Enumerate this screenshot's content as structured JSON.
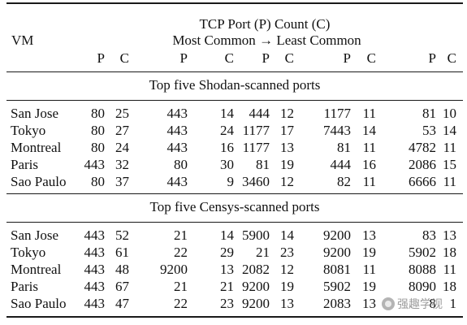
{
  "header": {
    "vm_label": "VM",
    "title": "TCP Port (P) Count (C)",
    "order_from": "Most Common",
    "arrow": "→",
    "order_to": "Least Common",
    "p_label": "P",
    "c_label": "C"
  },
  "sections": [
    {
      "title": "Top five Shodan-scanned ports",
      "rows": [
        {
          "vm": "San Jose",
          "cells": [
            "80",
            "25",
            "443",
            "14",
            "444",
            "12",
            "1177",
            "11",
            "81",
            "10"
          ]
        },
        {
          "vm": "Tokyo",
          "cells": [
            "80",
            "27",
            "443",
            "24",
            "1177",
            "17",
            "7443",
            "14",
            "53",
            "14"
          ]
        },
        {
          "vm": "Montreal",
          "cells": [
            "80",
            "24",
            "443",
            "16",
            "1177",
            "13",
            "81",
            "11",
            "4782",
            "11"
          ]
        },
        {
          "vm": "Paris",
          "cells": [
            "443",
            "32",
            "80",
            "30",
            "81",
            "19",
            "444",
            "16",
            "2086",
            "15"
          ]
        },
        {
          "vm": "Sao Paulo",
          "cells": [
            "80",
            "37",
            "443",
            "9",
            "3460",
            "12",
            "82",
            "11",
            "6666",
            "11"
          ]
        }
      ]
    },
    {
      "title": "Top five Censys-scanned ports",
      "rows": [
        {
          "vm": "San Jose",
          "cells": [
            "443",
            "52",
            "21",
            "14",
            "5900",
            "14",
            "9200",
            "13",
            "83",
            "13"
          ]
        },
        {
          "vm": "Tokyo",
          "cells": [
            "443",
            "61",
            "22",
            "29",
            "21",
            "23",
            "9200",
            "19",
            "5902",
            "18"
          ]
        },
        {
          "vm": "Montreal",
          "cells": [
            "443",
            "48",
            "9200",
            "13",
            "2082",
            "12",
            "8081",
            "11",
            "8088",
            "11"
          ]
        },
        {
          "vm": "Paris",
          "cells": [
            "443",
            "67",
            "21",
            "21",
            "9200",
            "19",
            "5902",
            "19",
            "8090",
            "18"
          ]
        },
        {
          "vm": "Sao Paulo",
          "cells": [
            "443",
            "47",
            "22",
            "23",
            "9200",
            "13",
            "2083",
            "13",
            "8",
            "1"
          ]
        }
      ]
    }
  ],
  "watermark": "强趣学视"
}
